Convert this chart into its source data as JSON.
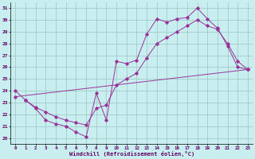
{
  "xlabel": "Windchill (Refroidissement éolien,°C)",
  "bg_color": "#c8eef0",
  "grid_color": "#a0ccc8",
  "line_color": "#993399",
  "xlim": [
    -0.5,
    23.5
  ],
  "ylim": [
    19.5,
    31.5
  ],
  "xticks": [
    0,
    1,
    2,
    3,
    4,
    5,
    6,
    7,
    8,
    9,
    10,
    11,
    12,
    13,
    14,
    15,
    16,
    17,
    18,
    19,
    20,
    21,
    22,
    23
  ],
  "yticks": [
    20,
    21,
    22,
    23,
    24,
    25,
    26,
    27,
    28,
    29,
    30,
    31
  ],
  "line1_x": [
    0,
    1,
    2,
    3,
    4,
    5,
    6,
    7,
    8,
    9,
    10,
    11,
    12,
    13,
    14,
    15,
    16,
    17,
    18,
    19,
    20,
    21,
    22,
    23
  ],
  "line1_y": [
    24.0,
    23.2,
    22.5,
    21.5,
    21.2,
    21.0,
    20.5,
    20.1,
    23.8,
    21.5,
    26.5,
    26.3,
    26.6,
    28.8,
    30.1,
    29.8,
    30.1,
    30.2,
    31.0,
    30.1,
    29.3,
    27.8,
    26.0,
    25.8
  ],
  "line2_x": [
    1,
    2,
    3,
    4,
    5,
    6,
    7,
    8,
    9,
    10,
    11,
    12,
    13,
    14,
    15,
    16,
    17,
    18,
    19,
    20,
    21,
    22,
    23
  ],
  "line2_y": [
    23.2,
    22.6,
    22.2,
    21.8,
    21.5,
    21.3,
    21.1,
    22.5,
    22.8,
    24.5,
    25.0,
    25.5,
    26.8,
    28.0,
    28.5,
    29.0,
    29.5,
    30.0,
    29.5,
    29.2,
    28.0,
    26.5,
    25.8
  ],
  "line3_x": [
    0,
    23
  ],
  "line3_y": [
    23.5,
    25.8
  ]
}
